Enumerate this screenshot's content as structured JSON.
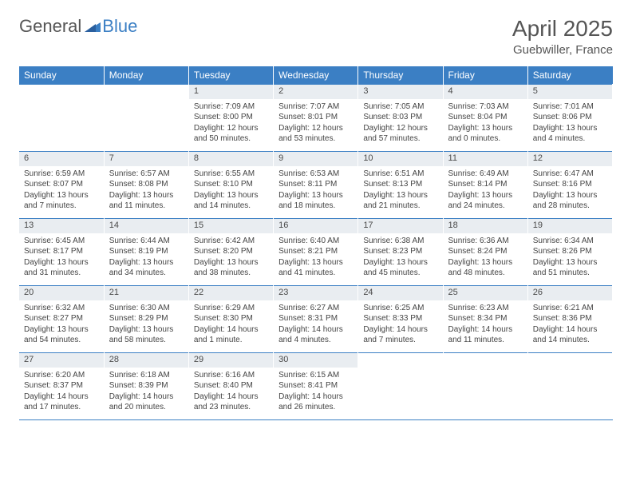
{
  "brand": {
    "name_part1": "General",
    "name_part2": "Blue"
  },
  "title": "April 2025",
  "location": "Guebwiller, France",
  "colors": {
    "accent": "#3b7fc4",
    "header_bg": "#3b7fc4",
    "header_text": "#ffffff",
    "daynum_bg": "#e9edf1",
    "text": "#444444",
    "title_text": "#555555",
    "page_bg": "#ffffff"
  },
  "weekdays": [
    "Sunday",
    "Monday",
    "Tuesday",
    "Wednesday",
    "Thursday",
    "Friday",
    "Saturday"
  ],
  "weeks": [
    [
      null,
      null,
      {
        "n": "1",
        "sr": "Sunrise: 7:09 AM",
        "ss": "Sunset: 8:00 PM",
        "dl": "Daylight: 12 hours and 50 minutes."
      },
      {
        "n": "2",
        "sr": "Sunrise: 7:07 AM",
        "ss": "Sunset: 8:01 PM",
        "dl": "Daylight: 12 hours and 53 minutes."
      },
      {
        "n": "3",
        "sr": "Sunrise: 7:05 AM",
        "ss": "Sunset: 8:03 PM",
        "dl": "Daylight: 12 hours and 57 minutes."
      },
      {
        "n": "4",
        "sr": "Sunrise: 7:03 AM",
        "ss": "Sunset: 8:04 PM",
        "dl": "Daylight: 13 hours and 0 minutes."
      },
      {
        "n": "5",
        "sr": "Sunrise: 7:01 AM",
        "ss": "Sunset: 8:06 PM",
        "dl": "Daylight: 13 hours and 4 minutes."
      }
    ],
    [
      {
        "n": "6",
        "sr": "Sunrise: 6:59 AM",
        "ss": "Sunset: 8:07 PM",
        "dl": "Daylight: 13 hours and 7 minutes."
      },
      {
        "n": "7",
        "sr": "Sunrise: 6:57 AM",
        "ss": "Sunset: 8:08 PM",
        "dl": "Daylight: 13 hours and 11 minutes."
      },
      {
        "n": "8",
        "sr": "Sunrise: 6:55 AM",
        "ss": "Sunset: 8:10 PM",
        "dl": "Daylight: 13 hours and 14 minutes."
      },
      {
        "n": "9",
        "sr": "Sunrise: 6:53 AM",
        "ss": "Sunset: 8:11 PM",
        "dl": "Daylight: 13 hours and 18 minutes."
      },
      {
        "n": "10",
        "sr": "Sunrise: 6:51 AM",
        "ss": "Sunset: 8:13 PM",
        "dl": "Daylight: 13 hours and 21 minutes."
      },
      {
        "n": "11",
        "sr": "Sunrise: 6:49 AM",
        "ss": "Sunset: 8:14 PM",
        "dl": "Daylight: 13 hours and 24 minutes."
      },
      {
        "n": "12",
        "sr": "Sunrise: 6:47 AM",
        "ss": "Sunset: 8:16 PM",
        "dl": "Daylight: 13 hours and 28 minutes."
      }
    ],
    [
      {
        "n": "13",
        "sr": "Sunrise: 6:45 AM",
        "ss": "Sunset: 8:17 PM",
        "dl": "Daylight: 13 hours and 31 minutes."
      },
      {
        "n": "14",
        "sr": "Sunrise: 6:44 AM",
        "ss": "Sunset: 8:19 PM",
        "dl": "Daylight: 13 hours and 34 minutes."
      },
      {
        "n": "15",
        "sr": "Sunrise: 6:42 AM",
        "ss": "Sunset: 8:20 PM",
        "dl": "Daylight: 13 hours and 38 minutes."
      },
      {
        "n": "16",
        "sr": "Sunrise: 6:40 AM",
        "ss": "Sunset: 8:21 PM",
        "dl": "Daylight: 13 hours and 41 minutes."
      },
      {
        "n": "17",
        "sr": "Sunrise: 6:38 AM",
        "ss": "Sunset: 8:23 PM",
        "dl": "Daylight: 13 hours and 45 minutes."
      },
      {
        "n": "18",
        "sr": "Sunrise: 6:36 AM",
        "ss": "Sunset: 8:24 PM",
        "dl": "Daylight: 13 hours and 48 minutes."
      },
      {
        "n": "19",
        "sr": "Sunrise: 6:34 AM",
        "ss": "Sunset: 8:26 PM",
        "dl": "Daylight: 13 hours and 51 minutes."
      }
    ],
    [
      {
        "n": "20",
        "sr": "Sunrise: 6:32 AM",
        "ss": "Sunset: 8:27 PM",
        "dl": "Daylight: 13 hours and 54 minutes."
      },
      {
        "n": "21",
        "sr": "Sunrise: 6:30 AM",
        "ss": "Sunset: 8:29 PM",
        "dl": "Daylight: 13 hours and 58 minutes."
      },
      {
        "n": "22",
        "sr": "Sunrise: 6:29 AM",
        "ss": "Sunset: 8:30 PM",
        "dl": "Daylight: 14 hours and 1 minute."
      },
      {
        "n": "23",
        "sr": "Sunrise: 6:27 AM",
        "ss": "Sunset: 8:31 PM",
        "dl": "Daylight: 14 hours and 4 minutes."
      },
      {
        "n": "24",
        "sr": "Sunrise: 6:25 AM",
        "ss": "Sunset: 8:33 PM",
        "dl": "Daylight: 14 hours and 7 minutes."
      },
      {
        "n": "25",
        "sr": "Sunrise: 6:23 AM",
        "ss": "Sunset: 8:34 PM",
        "dl": "Daylight: 14 hours and 11 minutes."
      },
      {
        "n": "26",
        "sr": "Sunrise: 6:21 AM",
        "ss": "Sunset: 8:36 PM",
        "dl": "Daylight: 14 hours and 14 minutes."
      }
    ],
    [
      {
        "n": "27",
        "sr": "Sunrise: 6:20 AM",
        "ss": "Sunset: 8:37 PM",
        "dl": "Daylight: 14 hours and 17 minutes."
      },
      {
        "n": "28",
        "sr": "Sunrise: 6:18 AM",
        "ss": "Sunset: 8:39 PM",
        "dl": "Daylight: 14 hours and 20 minutes."
      },
      {
        "n": "29",
        "sr": "Sunrise: 6:16 AM",
        "ss": "Sunset: 8:40 PM",
        "dl": "Daylight: 14 hours and 23 minutes."
      },
      {
        "n": "30",
        "sr": "Sunrise: 6:15 AM",
        "ss": "Sunset: 8:41 PM",
        "dl": "Daylight: 14 hours and 26 minutes."
      },
      null,
      null,
      null
    ]
  ]
}
